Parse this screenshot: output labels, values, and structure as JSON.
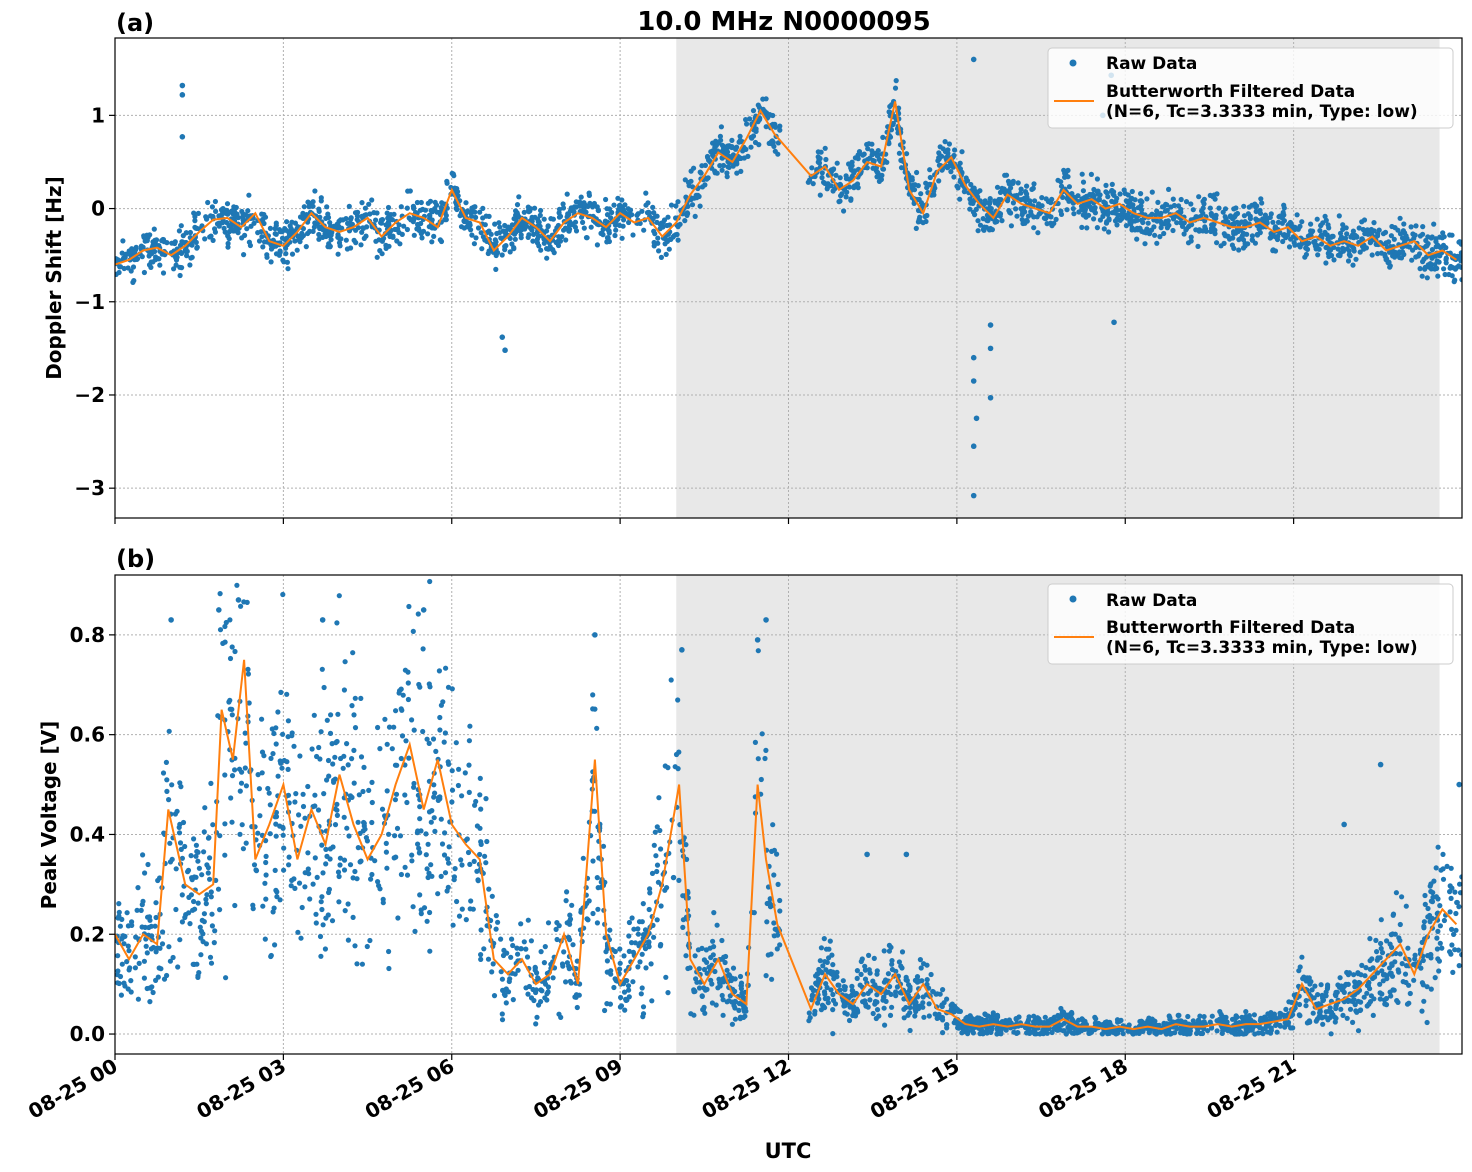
{
  "figure": {
    "title": "10.0 MHz N0000095",
    "xlabel": "UTC",
    "colors": {
      "raw": "#1f77b4",
      "filtered": "#ff7f0e",
      "shade": "#e8e8e8",
      "grid": "#b0b0b0"
    }
  },
  "chart_data": [
    {
      "panel_label": "(a)",
      "type": "scatter",
      "ylabel": "Doppler Shift [Hz]",
      "xlim_hours": [
        0,
        24
      ],
      "ylim": [
        -3.32,
        1.83
      ],
      "yticks": [
        -3,
        -2,
        -1,
        0,
        1
      ],
      "ytick_labels": [
        "−3",
        "−2",
        "−1",
        "0",
        "1"
      ],
      "xticks_hours": [
        0,
        3,
        6,
        9,
        12,
        15,
        18,
        21
      ],
      "xtick_labels": [
        "08-25 00",
        "08-25 03",
        "08-25 06",
        "08-25 09",
        "08-25 12",
        "08-25 15",
        "08-25 18",
        "08-25 21"
      ],
      "shaded_span_hours": [
        10.0,
        23.6
      ],
      "grid": true,
      "legend": {
        "position": "top-right",
        "entries": [
          "Raw Data",
          "Butterworth Filtered Data",
          "(N=6, Tc=3.3333 min, Type: low)"
        ]
      },
      "data_gap_hours": [
        11.85,
        12.35
      ],
      "series": [
        {
          "name": "Butterworth Filtered Data (N=6, Tc=3.3333 min, Type: low)",
          "kind": "line",
          "x_hours": [
            0,
            0.25,
            0.5,
            0.75,
            1.0,
            1.25,
            1.5,
            1.75,
            2.0,
            2.25,
            2.5,
            2.75,
            3.0,
            3.25,
            3.5,
            3.75,
            4.0,
            4.25,
            4.5,
            4.75,
            5.0,
            5.25,
            5.5,
            5.75,
            6.0,
            6.25,
            6.5,
            6.75,
            7.0,
            7.25,
            7.5,
            7.75,
            8.0,
            8.25,
            8.5,
            8.75,
            9.0,
            9.25,
            9.5,
            9.75,
            10.0,
            10.25,
            10.5,
            10.75,
            11.0,
            11.25,
            11.5,
            11.75,
            12.4,
            12.65,
            12.9,
            13.15,
            13.4,
            13.65,
            13.9,
            14.15,
            14.4,
            14.65,
            14.9,
            15.15,
            15.4,
            15.65,
            15.9,
            16.15,
            16.4,
            16.65,
            16.9,
            17.15,
            17.4,
            17.65,
            17.9,
            18.15,
            18.4,
            18.65,
            18.9,
            19.15,
            19.4,
            19.65,
            19.9,
            20.15,
            20.4,
            20.65,
            20.9,
            21.15,
            21.4,
            21.65,
            21.9,
            22.15,
            22.4,
            22.65,
            22.9,
            23.15,
            23.4,
            23.65,
            23.9
          ],
          "y": [
            -0.6,
            -0.55,
            -0.45,
            -0.42,
            -0.5,
            -0.4,
            -0.25,
            -0.12,
            -0.1,
            -0.2,
            -0.05,
            -0.35,
            -0.4,
            -0.25,
            -0.05,
            -0.2,
            -0.25,
            -0.2,
            -0.1,
            -0.3,
            -0.15,
            -0.05,
            -0.1,
            -0.2,
            0.2,
            -0.1,
            -0.15,
            -0.45,
            -0.3,
            -0.1,
            -0.2,
            -0.35,
            -0.15,
            -0.05,
            -0.1,
            -0.2,
            -0.05,
            -0.15,
            -0.1,
            -0.3,
            -0.15,
            0.15,
            0.35,
            0.6,
            0.5,
            0.75,
            1.05,
            0.8,
            0.35,
            0.45,
            0.2,
            0.3,
            0.5,
            0.45,
            1.15,
            0.2,
            -0.05,
            0.4,
            0.55,
            0.25,
            0.05,
            -0.1,
            0.15,
            0.05,
            0.0,
            -0.05,
            0.2,
            0.05,
            0.1,
            0.0,
            0.05,
            -0.05,
            -0.1,
            -0.1,
            -0.05,
            -0.15,
            -0.1,
            -0.15,
            -0.2,
            -0.2,
            -0.15,
            -0.25,
            -0.2,
            -0.35,
            -0.3,
            -0.4,
            -0.35,
            -0.4,
            -0.3,
            -0.45,
            -0.4,
            -0.35,
            -0.5,
            -0.45,
            -0.55
          ]
        },
        {
          "name": "Raw Data",
          "kind": "scatter",
          "spread_around_filtered": 0.3,
          "outliers": [
            {
              "x_hours": 1.2,
              "y": 1.32
            },
            {
              "x_hours": 1.2,
              "y": 1.22
            },
            {
              "x_hours": 1.2,
              "y": 0.77
            },
            {
              "x_hours": 6.95,
              "y": -1.52
            },
            {
              "x_hours": 6.9,
              "y": -1.38
            },
            {
              "x_hours": 15.3,
              "y": 1.6
            },
            {
              "x_hours": 15.3,
              "y": -3.08
            },
            {
              "x_hours": 15.3,
              "y": -2.55
            },
            {
              "x_hours": 15.35,
              "y": -2.25
            },
            {
              "x_hours": 15.3,
              "y": -1.85
            },
            {
              "x_hours": 15.3,
              "y": -1.6
            },
            {
              "x_hours": 15.6,
              "y": -1.5
            },
            {
              "x_hours": 15.6,
              "y": -1.25
            },
            {
              "x_hours": 15.6,
              "y": -2.03
            },
            {
              "x_hours": 17.75,
              "y": 1.43
            },
            {
              "x_hours": 17.6,
              "y": 1.0
            },
            {
              "x_hours": 17.8,
              "y": -1.22
            }
          ]
        }
      ]
    },
    {
      "panel_label": "(b)",
      "type": "scatter",
      "ylabel": "Peak Voltage [V]",
      "xlim_hours": [
        0,
        24
      ],
      "ylim": [
        -0.04,
        0.92
      ],
      "yticks": [
        0.0,
        0.2,
        0.4,
        0.6,
        0.8
      ],
      "ytick_labels": [
        "0.0",
        "0.2",
        "0.4",
        "0.6",
        "0.8"
      ],
      "xticks_hours": [
        0,
        3,
        6,
        9,
        12,
        15,
        18,
        21
      ],
      "xtick_labels": [
        "08-25 00",
        "08-25 03",
        "08-25 06",
        "08-25 09",
        "08-25 12",
        "08-25 15",
        "08-25 18",
        "08-25 21"
      ],
      "shaded_span_hours": [
        10.0,
        23.6
      ],
      "grid": true,
      "legend": {
        "position": "top-right",
        "entries": [
          "Raw Data",
          "Butterworth Filtered Data",
          "(N=6, Tc=3.3333 min, Type: low)"
        ]
      },
      "data_gap_hours": [
        11.85,
        12.35
      ],
      "series": [
        {
          "name": "Butterworth Filtered Data (N=6, Tc=3.3333 min, Type: low)",
          "kind": "line",
          "x_hours": [
            0,
            0.25,
            0.5,
            0.75,
            0.95,
            1.25,
            1.5,
            1.75,
            1.9,
            2.1,
            2.3,
            2.5,
            2.75,
            3.0,
            3.25,
            3.5,
            3.75,
            4.0,
            4.25,
            4.5,
            4.75,
            5.0,
            5.25,
            5.5,
            5.75,
            6.0,
            6.25,
            6.5,
            6.75,
            7.0,
            7.25,
            7.5,
            7.75,
            8.0,
            8.25,
            8.55,
            8.75,
            9.0,
            9.25,
            9.5,
            9.75,
            10.05,
            10.25,
            10.5,
            10.75,
            11.0,
            11.25,
            11.45,
            11.6,
            11.8,
            12.4,
            12.65,
            12.9,
            13.15,
            13.4,
            13.65,
            13.9,
            14.15,
            14.4,
            14.65,
            14.9,
            15.15,
            15.4,
            15.65,
            15.9,
            16.15,
            16.4,
            16.65,
            16.9,
            17.15,
            17.4,
            17.65,
            17.9,
            18.15,
            18.4,
            18.65,
            18.9,
            19.15,
            19.4,
            19.65,
            19.9,
            20.15,
            20.4,
            20.65,
            20.9,
            21.15,
            21.4,
            21.65,
            21.9,
            22.15,
            22.4,
            22.65,
            22.9,
            23.15,
            23.4,
            23.65,
            23.9
          ],
          "y": [
            0.2,
            0.15,
            0.2,
            0.18,
            0.45,
            0.3,
            0.28,
            0.3,
            0.65,
            0.55,
            0.75,
            0.35,
            0.42,
            0.5,
            0.35,
            0.45,
            0.38,
            0.52,
            0.42,
            0.35,
            0.4,
            0.5,
            0.58,
            0.45,
            0.55,
            0.42,
            0.38,
            0.35,
            0.15,
            0.12,
            0.15,
            0.1,
            0.12,
            0.2,
            0.1,
            0.55,
            0.2,
            0.1,
            0.15,
            0.2,
            0.3,
            0.5,
            0.15,
            0.1,
            0.15,
            0.08,
            0.06,
            0.5,
            0.35,
            0.22,
            0.05,
            0.12,
            0.08,
            0.06,
            0.1,
            0.08,
            0.12,
            0.06,
            0.1,
            0.05,
            0.04,
            0.02,
            0.015,
            0.02,
            0.015,
            0.02,
            0.015,
            0.015,
            0.03,
            0.015,
            0.015,
            0.01,
            0.015,
            0.01,
            0.015,
            0.01,
            0.02,
            0.015,
            0.015,
            0.02,
            0.015,
            0.02,
            0.02,
            0.025,
            0.03,
            0.1,
            0.05,
            0.06,
            0.07,
            0.09,
            0.12,
            0.15,
            0.18,
            0.12,
            0.2,
            0.25,
            0.22
          ]
        },
        {
          "name": "Raw Data",
          "kind": "scatter",
          "spread_factor": 0.55,
          "outliers": [
            {
              "x_hours": 1.0,
              "y": 0.83
            },
            {
              "x_hours": 1.85,
              "y": 0.85
            },
            {
              "x_hours": 2.2,
              "y": 0.87
            },
            {
              "x_hours": 3.7,
              "y": 0.83
            },
            {
              "x_hours": 5.5,
              "y": 0.85
            },
            {
              "x_hours": 8.55,
              "y": 0.8
            },
            {
              "x_hours": 10.1,
              "y": 0.77
            },
            {
              "x_hours": 11.45,
              "y": 0.79
            },
            {
              "x_hours": 11.6,
              "y": 0.83
            },
            {
              "x_hours": 13.4,
              "y": 0.36
            },
            {
              "x_hours": 14.1,
              "y": 0.36
            },
            {
              "x_hours": 22.55,
              "y": 0.54
            },
            {
              "x_hours": 23.95,
              "y": 0.5
            },
            {
              "x_hours": 21.9,
              "y": 0.42
            }
          ]
        }
      ]
    }
  ]
}
